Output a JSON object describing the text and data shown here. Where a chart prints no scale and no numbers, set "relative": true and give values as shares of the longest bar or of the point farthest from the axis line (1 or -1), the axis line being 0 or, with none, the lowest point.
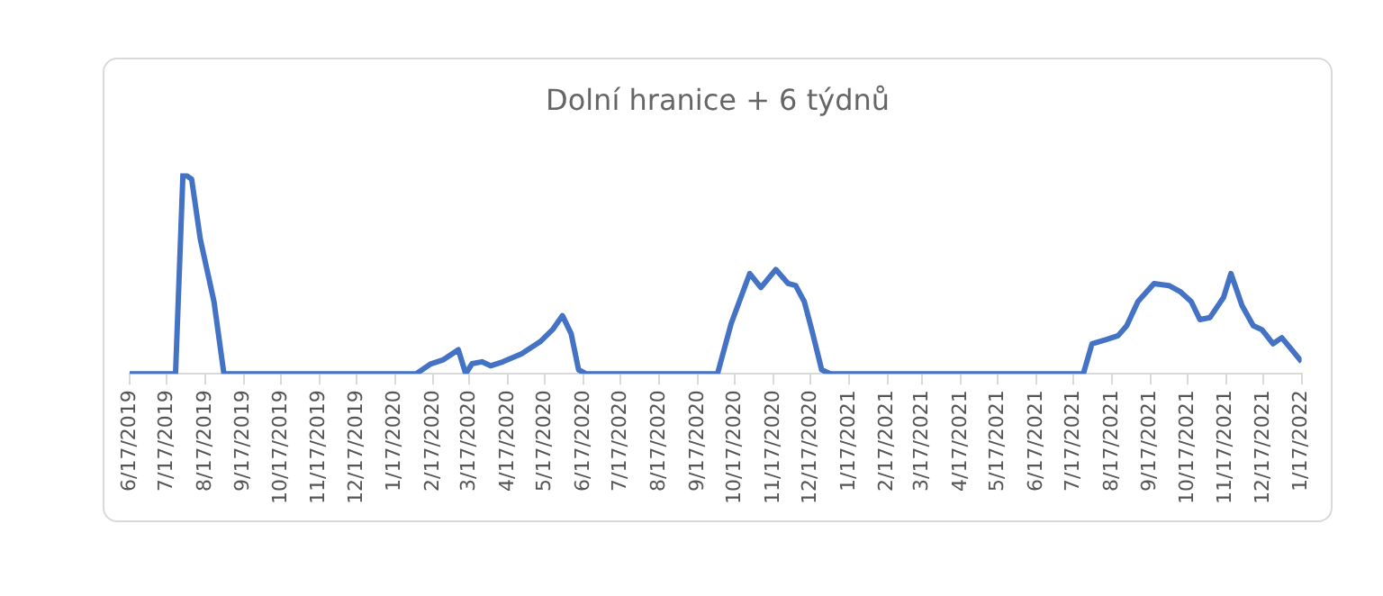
{
  "chart_data": {
    "type": "line",
    "title": "Dolní hranice + 6 týdnů",
    "relative": true,
    "marker": "none",
    "legend": false,
    "grid": false,
    "xlim": [
      "2019-06-17",
      "2022-01-17"
    ],
    "xticks": [
      {
        "value": "2019-06-17",
        "label": "6/17/2019"
      },
      {
        "value": "2019-07-17",
        "label": "7/17/2019"
      },
      {
        "value": "2019-08-17",
        "label": "8/17/2019"
      },
      {
        "value": "2019-09-17",
        "label": "9/17/2019"
      },
      {
        "value": "2019-10-17",
        "label": "10/17/2019"
      },
      {
        "value": "2019-11-17",
        "label": "11/17/2019"
      },
      {
        "value": "2019-12-17",
        "label": "12/17/2019"
      },
      {
        "value": "2020-01-17",
        "label": "1/17/2020"
      },
      {
        "value": "2020-02-17",
        "label": "2/17/2020"
      },
      {
        "value": "2020-03-17",
        "label": "3/17/2020"
      },
      {
        "value": "2020-04-17",
        "label": "4/17/2020"
      },
      {
        "value": "2020-05-17",
        "label": "5/17/2020"
      },
      {
        "value": "2020-06-17",
        "label": "6/17/2020"
      },
      {
        "value": "2020-07-17",
        "label": "7/17/2020"
      },
      {
        "value": "2020-08-17",
        "label": "8/17/2020"
      },
      {
        "value": "2020-09-17",
        "label": "9/17/2020"
      },
      {
        "value": "2020-10-17",
        "label": "10/17/2020"
      },
      {
        "value": "2020-11-17",
        "label": "11/17/2020"
      },
      {
        "value": "2020-12-17",
        "label": "12/17/2020"
      },
      {
        "value": "2021-01-17",
        "label": "1/17/2021"
      },
      {
        "value": "2021-02-17",
        "label": "2/17/2021"
      },
      {
        "value": "2021-03-17",
        "label": "3/17/2021"
      },
      {
        "value": "2021-04-17",
        "label": "4/17/2021"
      },
      {
        "value": "2021-05-17",
        "label": "5/17/2021"
      },
      {
        "value": "2021-06-17",
        "label": "6/17/2021"
      },
      {
        "value": "2021-07-17",
        "label": "7/17/2021"
      },
      {
        "value": "2021-08-17",
        "label": "8/17/2021"
      },
      {
        "value": "2021-09-17",
        "label": "9/17/2021"
      },
      {
        "value": "2021-10-17",
        "label": "10/17/2021"
      },
      {
        "value": "2021-11-17",
        "label": "11/17/2021"
      },
      {
        "value": "2021-12-17",
        "label": "12/17/2021"
      },
      {
        "value": "2022-01-17",
        "label": "1/17/2022"
      }
    ],
    "x": [
      "2019-06-17",
      "2019-07-24",
      "2019-07-30",
      "2019-08-06",
      "2019-08-13",
      "2019-08-24",
      "2019-09-01",
      "2020-02-03",
      "2020-02-15",
      "2020-02-25",
      "2020-03-08",
      "2020-03-14",
      "2020-03-19",
      "2020-03-27",
      "2020-04-03",
      "2020-04-13",
      "2020-04-28",
      "2020-05-13",
      "2020-05-23",
      "2020-05-31",
      "2020-06-07",
      "2020-06-13",
      "2020-06-19",
      "2020-10-03",
      "2020-10-14",
      "2020-10-29",
      "2020-11-07",
      "2020-11-19",
      "2020-11-29",
      "2020-12-05",
      "2020-12-12",
      "2020-12-18",
      "2020-12-26",
      "2021-01-02",
      "2021-07-25",
      "2021-08-01",
      "2021-08-12",
      "2021-08-22",
      "2021-08-29",
      "2021-09-07",
      "2021-09-20",
      "2021-10-02",
      "2021-10-11",
      "2021-10-20",
      "2021-10-27",
      "2021-11-04",
      "2021-11-15",
      "2021-11-21",
      "2021-11-30",
      "2021-12-09",
      "2021-12-16",
      "2021-12-25",
      "2022-01-01",
      "2022-01-09",
      "2022-01-17"
    ],
    "series": [
      {
        "color": "#4472c4",
        "values": [
          0,
          0,
          1,
          0.97,
          0.67,
          0.36,
          0,
          0,
          0.05,
          0.07,
          0.12,
          0,
          0.05,
          0.06,
          0.04,
          0.06,
          0.1,
          0.16,
          0.22,
          0.29,
          0.2,
          0.02,
          0,
          0,
          0.25,
          0.5,
          0.43,
          0.52,
          0.45,
          0.44,
          0.36,
          0.22,
          0.02,
          0,
          0,
          0.15,
          0.17,
          0.19,
          0.24,
          0.36,
          0.45,
          0.44,
          0.41,
          0.36,
          0.27,
          0.28,
          0.38,
          0.5,
          0.34,
          0.24,
          0.22,
          0.15,
          0.18,
          0.12,
          0.06
        ]
      }
    ]
  }
}
